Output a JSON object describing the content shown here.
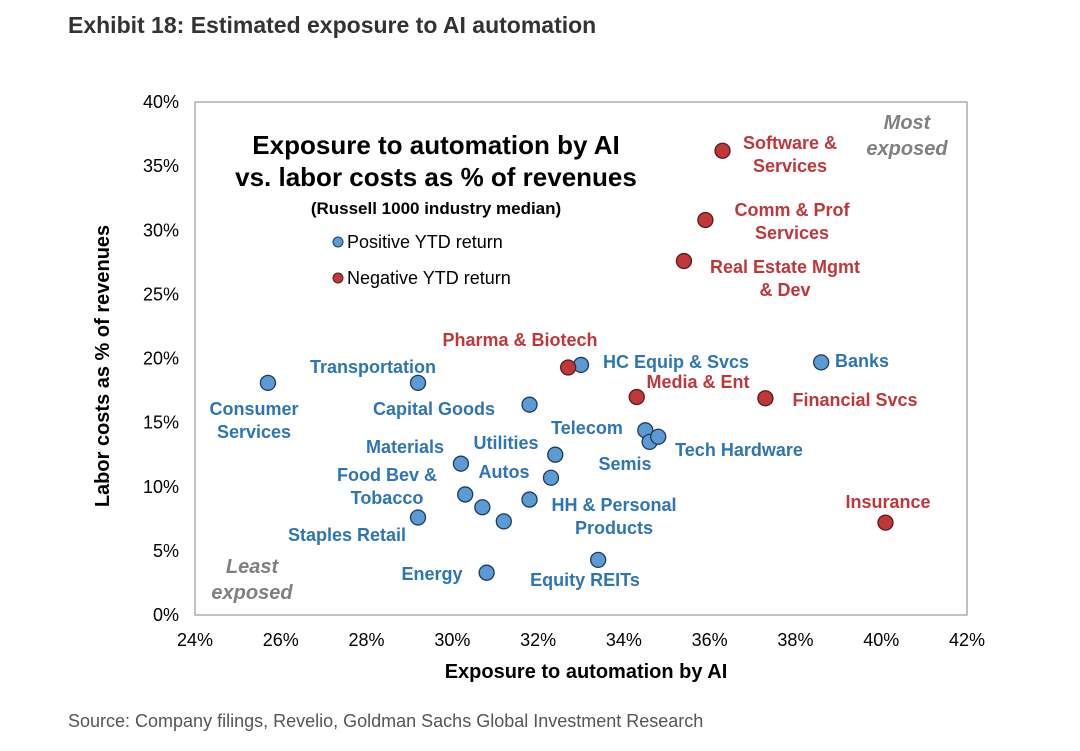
{
  "exhibit_title": "Exhibit 18: Estimated exposure to AI automation",
  "source": "Source: Company filings, Revelio, Goldman Sachs Global Investment Research",
  "colors": {
    "positive": "#5B9BD5",
    "negative": "#C0373A",
    "positive_text": "#2E75B6",
    "negative_text": "#C0373A",
    "corner_text": "#808080"
  },
  "chart_data": {
    "type": "scatter",
    "title_lines": [
      "Exposure to automation by AI",
      "vs. labor costs as % of revenues"
    ],
    "subtitle": "(Russell 1000 industry median)",
    "xlabel": "Exposure to automation by AI",
    "ylabel": "Labor costs as % of revenues",
    "xlim": [
      24,
      42
    ],
    "ylim": [
      0,
      40
    ],
    "x_ticks": [
      "24%",
      "26%",
      "28%",
      "30%",
      "32%",
      "34%",
      "36%",
      "38%",
      "40%",
      "42%"
    ],
    "y_ticks": [
      "0%",
      "5%",
      "10%",
      "15%",
      "20%",
      "25%",
      "30%",
      "35%",
      "40%"
    ],
    "grid": false,
    "legend_position": "top-left",
    "legend": [
      {
        "name": "Positive YTD return",
        "group": "positive"
      },
      {
        "name": "Negative YTD return",
        "group": "negative"
      }
    ],
    "corner_labels": {
      "most_exposed": [
        "Most",
        "exposed"
      ],
      "least_exposed": [
        "Least",
        "exposed"
      ]
    },
    "points": [
      {
        "x": 25.7,
        "y": 18.1,
        "group": "positive"
      },
      {
        "x": 29.2,
        "y": 18.1,
        "group": "positive"
      },
      {
        "x": 31.8,
        "y": 16.4,
        "group": "positive"
      },
      {
        "x": 33.0,
        "y": 19.5,
        "group": "positive"
      },
      {
        "x": 38.6,
        "y": 19.7,
        "group": "positive"
      },
      {
        "x": 34.5,
        "y": 14.4,
        "group": "positive"
      },
      {
        "x": 34.6,
        "y": 13.5,
        "group": "positive"
      },
      {
        "x": 34.8,
        "y": 13.9,
        "group": "positive"
      },
      {
        "x": 32.4,
        "y": 12.5,
        "group": "positive"
      },
      {
        "x": 32.3,
        "y": 10.7,
        "group": "positive"
      },
      {
        "x": 30.2,
        "y": 11.8,
        "group": "positive"
      },
      {
        "x": 30.3,
        "y": 9.4,
        "group": "positive"
      },
      {
        "x": 30.7,
        "y": 8.4,
        "group": "positive"
      },
      {
        "x": 31.2,
        "y": 7.3,
        "group": "positive"
      },
      {
        "x": 31.8,
        "y": 9.0,
        "group": "positive"
      },
      {
        "x": 29.2,
        "y": 7.6,
        "group": "positive"
      },
      {
        "x": 30.8,
        "y": 3.3,
        "group": "positive"
      },
      {
        "x": 33.4,
        "y": 4.3,
        "group": "positive"
      },
      {
        "x": 36.3,
        "y": 36.2,
        "group": "negative"
      },
      {
        "x": 35.9,
        "y": 30.8,
        "group": "negative"
      },
      {
        "x": 35.4,
        "y": 27.6,
        "group": "negative"
      },
      {
        "x": 32.7,
        "y": 19.3,
        "group": "negative"
      },
      {
        "x": 34.3,
        "y": 17.0,
        "group": "negative"
      },
      {
        "x": 37.3,
        "y": 16.9,
        "group": "negative"
      },
      {
        "x": 40.1,
        "y": 7.2,
        "group": "negative"
      }
    ],
    "labels": [
      {
        "lines": [
          "Software &",
          "Services"
        ],
        "group": "negative"
      },
      {
        "lines": [
          "Comm & Prof",
          "Services"
        ],
        "group": "negative"
      },
      {
        "lines": [
          "Real Estate  Mgmt",
          "& Dev"
        ],
        "group": "negative"
      },
      {
        "lines": [
          "Pharma & Biotech"
        ],
        "group": "negative"
      },
      {
        "lines": [
          "Media & Ent"
        ],
        "group": "negative"
      },
      {
        "lines": [
          "Financial Svcs"
        ],
        "group": "negative"
      },
      {
        "lines": [
          "Insurance"
        ],
        "group": "negative"
      },
      {
        "lines": [
          "HC Equip & Svcs"
        ],
        "group": "positive"
      },
      {
        "lines": [
          "Banks"
        ],
        "group": "positive"
      },
      {
        "lines": [
          "Transportation"
        ],
        "group": "positive"
      },
      {
        "lines": [
          "Consumer",
          "Services"
        ],
        "group": "positive"
      },
      {
        "lines": [
          "Capital Goods"
        ],
        "group": "positive"
      },
      {
        "lines": [
          "Telecom"
        ],
        "group": "positive"
      },
      {
        "lines": [
          "Tech Hardware"
        ],
        "group": "positive"
      },
      {
        "lines": [
          "Semis"
        ],
        "group": "positive"
      },
      {
        "lines": [
          "Materials"
        ],
        "group": "positive"
      },
      {
        "lines": [
          "Utilities"
        ],
        "group": "positive"
      },
      {
        "lines": [
          "Autos"
        ],
        "group": "positive"
      },
      {
        "lines": [
          "Food Bev &",
          "Tobacco"
        ],
        "group": "positive"
      },
      {
        "lines": [
          "HH & Personal",
          "Products"
        ],
        "group": "positive"
      },
      {
        "lines": [
          "Staples Retail"
        ],
        "group": "positive"
      },
      {
        "lines": [
          "Energy"
        ],
        "group": "positive"
      },
      {
        "lines": [
          "Equity REITs"
        ],
        "group": "positive"
      }
    ]
  }
}
